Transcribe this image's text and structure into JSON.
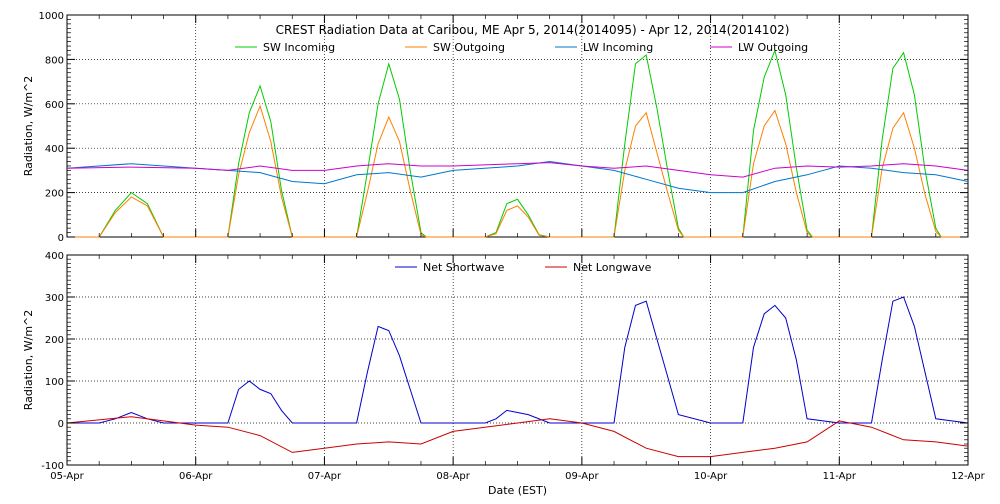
{
  "chart_data": [
    {
      "type": "line",
      "title": "CREST Radiation Data at Caribou, ME   Apr  5, 2014(2014095) - Apr 12, 2014(2014102)",
      "ylabel": "Radiation, W/m^2",
      "xlabel": "",
      "ylim": [
        0,
        1000
      ],
      "yticks": [
        0,
        200,
        400,
        600,
        800,
        1000
      ],
      "xlim": [
        "2014-04-05",
        "2014-04-12"
      ],
      "grid": true,
      "legend": "top",
      "series": [
        {
          "name": "SW Incoming",
          "color": "#00cc00",
          "x": [
            "04-05 00:00",
            "04-05 06:00",
            "04-05 09:00",
            "04-05 12:00",
            "04-05 15:00",
            "04-05 18:00",
            "04-06 00:00",
            "04-06 06:00",
            "04-06 08:00",
            "04-06 10:00",
            "04-06 12:00",
            "04-06 14:00",
            "04-06 16:00",
            "04-06 18:00",
            "04-06 19:00",
            "04-07 00:00",
            "04-07 06:00",
            "04-07 08:00",
            "04-07 10:00",
            "04-07 12:00",
            "04-07 14:00",
            "04-07 16:00",
            "04-07 18:00",
            "04-07 19:00",
            "04-08 00:00",
            "04-08 06:00",
            "04-08 08:00",
            "04-08 10:00",
            "04-08 12:00",
            "04-08 14:00",
            "04-08 16:00",
            "04-08 18:00",
            "04-09 00:00",
            "04-09 06:00",
            "04-09 08:00",
            "04-09 10:00",
            "04-09 12:00",
            "04-09 14:00",
            "04-09 16:00",
            "04-09 18:00",
            "04-09 19:00",
            "04-10 00:00",
            "04-10 06:00",
            "04-10 08:00",
            "04-10 10:00",
            "04-10 12:00",
            "04-10 14:00",
            "04-10 16:00",
            "04-10 18:00",
            "04-10 19:00",
            "04-11 00:00",
            "04-11 06:00",
            "04-11 08:00",
            "04-11 10:00",
            "04-11 12:00",
            "04-11 14:00",
            "04-11 16:00",
            "04-11 18:00",
            "04-11 19:00",
            "04-12 00:00"
          ],
          "values": [
            0,
            0,
            120,
            200,
            150,
            0,
            0,
            0,
            330,
            560,
            680,
            520,
            210,
            0,
            0,
            0,
            0,
            290,
            600,
            780,
            620,
            300,
            20,
            0,
            0,
            0,
            20,
            150,
            170,
            100,
            10,
            0,
            0,
            0,
            420,
            780,
            820,
            580,
            300,
            40,
            0,
            0,
            0,
            480,
            720,
            840,
            640,
            310,
            30,
            0,
            0,
            0,
            440,
            760,
            830,
            640,
            300,
            40,
            0,
            0
          ]
        },
        {
          "name": "SW Outgoing",
          "color": "#ff7f00",
          "x": [
            "04-05 00:00",
            "04-05 06:00",
            "04-05 09:00",
            "04-05 12:00",
            "04-05 15:00",
            "04-05 18:00",
            "04-06 00:00",
            "04-06 06:00",
            "04-06 08:00",
            "04-06 10:00",
            "04-06 12:00",
            "04-06 14:00",
            "04-06 16:00",
            "04-06 18:00",
            "04-06 19:00",
            "04-07 00:00",
            "04-07 06:00",
            "04-07 08:00",
            "04-07 10:00",
            "04-07 12:00",
            "04-07 14:00",
            "04-07 16:00",
            "04-07 18:00",
            "04-07 19:00",
            "04-08 00:00",
            "04-08 06:00",
            "04-08 08:00",
            "04-08 10:00",
            "04-08 12:00",
            "04-08 14:00",
            "04-08 16:00",
            "04-08 18:00",
            "04-09 00:00",
            "04-09 06:00",
            "04-09 08:00",
            "04-09 10:00",
            "04-09 12:00",
            "04-09 14:00",
            "04-09 16:00",
            "04-09 18:00",
            "04-09 19:00",
            "04-10 00:00",
            "04-10 06:00",
            "04-10 08:00",
            "04-10 10:00",
            "04-10 12:00",
            "04-10 14:00",
            "04-10 16:00",
            "04-10 18:00",
            "04-10 19:00",
            "04-11 00:00",
            "04-11 06:00",
            "04-11 08:00",
            "04-11 10:00",
            "04-11 12:00",
            "04-11 14:00",
            "04-11 16:00",
            "04-11 18:00",
            "04-11 19:00",
            "04-12 00:00"
          ],
          "values": [
            0,
            0,
            110,
            180,
            140,
            0,
            0,
            0,
            280,
            470,
            590,
            430,
            180,
            0,
            0,
            0,
            0,
            200,
            420,
            540,
            430,
            210,
            10,
            0,
            0,
            0,
            15,
            120,
            140,
            90,
            8,
            0,
            0,
            0,
            300,
            500,
            560,
            380,
            200,
            30,
            0,
            0,
            0,
            330,
            500,
            570,
            420,
            200,
            20,
            0,
            0,
            0,
            310,
            490,
            560,
            400,
            190,
            25,
            0,
            0
          ]
        },
        {
          "name": "LW Incoming",
          "color": "#0077cc",
          "x": [
            "04-05 00:00",
            "04-05 12:00",
            "04-06 00:00",
            "04-06 06:00",
            "04-06 12:00",
            "04-06 18:00",
            "04-07 00:00",
            "04-07 06:00",
            "04-07 12:00",
            "04-07 18:00",
            "04-08 00:00",
            "04-08 12:00",
            "04-08 18:00",
            "04-09 00:00",
            "04-09 06:00",
            "04-09 12:00",
            "04-09 18:00",
            "04-10 00:00",
            "04-10 06:00",
            "04-10 12:00",
            "04-10 18:00",
            "04-11 00:00",
            "04-11 06:00",
            "04-11 12:00",
            "04-11 18:00",
            "04-12 00:00"
          ],
          "values": [
            310,
            330,
            310,
            300,
            290,
            250,
            240,
            280,
            290,
            270,
            300,
            320,
            340,
            320,
            300,
            260,
            220,
            200,
            200,
            250,
            280,
            320,
            310,
            290,
            280,
            250
          ]
        },
        {
          "name": "LW Outgoing",
          "color": "#cc00cc",
          "x": [
            "04-05 00:00",
            "04-05 12:00",
            "04-06 00:00",
            "04-06 06:00",
            "04-06 12:00",
            "04-06 18:00",
            "04-07 00:00",
            "04-07 06:00",
            "04-07 12:00",
            "04-07 18:00",
            "04-08 00:00",
            "04-08 12:00",
            "04-08 18:00",
            "04-09 00:00",
            "04-09 06:00",
            "04-09 12:00",
            "04-09 18:00",
            "04-10 00:00",
            "04-10 06:00",
            "04-10 12:00",
            "04-10 18:00",
            "04-11 00:00",
            "04-11 06:00",
            "04-11 12:00",
            "04-11 18:00",
            "04-12 00:00"
          ],
          "values": [
            310,
            315,
            310,
            300,
            320,
            300,
            300,
            320,
            330,
            320,
            320,
            330,
            335,
            320,
            310,
            320,
            300,
            280,
            270,
            310,
            320,
            315,
            320,
            330,
            320,
            300
          ]
        }
      ]
    },
    {
      "type": "line",
      "title": "",
      "ylabel": "Radiation, W/m^2",
      "xlabel": "Date (EST)",
      "ylim": [
        -100,
        400
      ],
      "yticks": [
        -100,
        0,
        100,
        200,
        300,
        400
      ],
      "xlim": [
        "2014-04-05",
        "2014-04-12"
      ],
      "categories": [
        "05-Apr",
        "06-Apr",
        "07-Apr",
        "08-Apr",
        "09-Apr",
        "10-Apr",
        "11-Apr",
        "12-Apr"
      ],
      "grid": true,
      "legend": "top",
      "series": [
        {
          "name": "Net Shortwave",
          "color": "#0000cc",
          "x": [
            "04-05 00:00",
            "04-05 06:00",
            "04-05 09:00",
            "04-05 12:00",
            "04-05 15:00",
            "04-05 18:00",
            "04-06 00:00",
            "04-06 06:00",
            "04-06 08:00",
            "04-06 10:00",
            "04-06 12:00",
            "04-06 14:00",
            "04-06 16:00",
            "04-06 18:00",
            "04-07 00:00",
            "04-07 06:00",
            "04-07 08:00",
            "04-07 10:00",
            "04-07 12:00",
            "04-07 14:00",
            "04-07 16:00",
            "04-07 18:00",
            "04-08 00:00",
            "04-08 06:00",
            "04-08 08:00",
            "04-08 10:00",
            "04-08 12:00",
            "04-08 14:00",
            "04-08 18:00",
            "04-09 00:00",
            "04-09 06:00",
            "04-09 08:00",
            "04-09 10:00",
            "04-09 12:00",
            "04-09 14:00",
            "04-09 16:00",
            "04-09 18:00",
            "04-10 00:00",
            "04-10 06:00",
            "04-10 08:00",
            "04-10 10:00",
            "04-10 12:00",
            "04-10 14:00",
            "04-10 16:00",
            "04-10 18:00",
            "04-11 00:00",
            "04-11 06:00",
            "04-11 08:00",
            "04-11 10:00",
            "04-11 12:00",
            "04-11 14:00",
            "04-11 16:00",
            "04-11 18:00",
            "04-12 00:00"
          ],
          "values": [
            0,
            0,
            10,
            25,
            10,
            0,
            0,
            0,
            80,
            100,
            80,
            70,
            30,
            0,
            0,
            0,
            120,
            230,
            220,
            160,
            80,
            0,
            0,
            0,
            10,
            30,
            25,
            20,
            0,
            0,
            0,
            180,
            280,
            290,
            200,
            110,
            20,
            0,
            0,
            180,
            260,
            280,
            250,
            150,
            10,
            0,
            0,
            150,
            290,
            300,
            230,
            120,
            10,
            0
          ]
        },
        {
          "name": "Net Longwave",
          "color": "#cc0000",
          "x": [
            "04-05 00:00",
            "04-05 12:00",
            "04-05 18:00",
            "04-06 00:00",
            "04-06 06:00",
            "04-06 12:00",
            "04-06 18:00",
            "04-07 00:00",
            "04-07 06:00",
            "04-07 12:00",
            "04-07 18:00",
            "04-08 00:00",
            "04-08 12:00",
            "04-08 18:00",
            "04-09 00:00",
            "04-09 06:00",
            "04-09 12:00",
            "04-09 18:00",
            "04-10 00:00",
            "04-10 06:00",
            "04-10 12:00",
            "04-10 18:00",
            "04-11 00:00",
            "04-11 06:00",
            "04-11 12:00",
            "04-11 18:00",
            "04-12 00:00"
          ],
          "values": [
            0,
            15,
            5,
            -5,
            -10,
            -30,
            -70,
            -60,
            -50,
            -45,
            -50,
            -20,
            0,
            10,
            0,
            -20,
            -60,
            -80,
            -80,
            -70,
            -60,
            -45,
            5,
            -10,
            -40,
            -45,
            -55
          ]
        }
      ]
    }
  ]
}
